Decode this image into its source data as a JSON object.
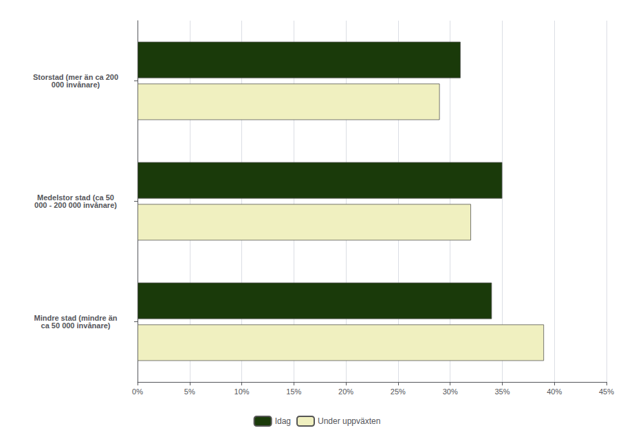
{
  "chart_data": {
    "type": "bar",
    "orientation": "horizontal",
    "categories": [
      "Storstad (mer än ca 200\n000 invånare)",
      "Medelstor stad (ca 50\n000 - 200 000 invånare)",
      "Mindre stad (mindre än\nca 50 000 invånare)"
    ],
    "series": [
      {
        "name": "Idag",
        "color": "#1a3a0a",
        "values": [
          0.31,
          0.35,
          0.34
        ]
      },
      {
        "name": "Under uppväxten",
        "color": "#f0f0c0",
        "values": [
          0.29,
          0.32,
          0.39
        ]
      }
    ],
    "xlim": [
      0,
      0.45
    ],
    "xticks": [
      {
        "value": 0.0,
        "label": "0%"
      },
      {
        "value": 0.05,
        "label": "5%"
      },
      {
        "value": 0.1,
        "label": "10%"
      },
      {
        "value": 0.15,
        "label": "15%"
      },
      {
        "value": 0.2,
        "label": "20%"
      },
      {
        "value": 0.25,
        "label": "25%"
      },
      {
        "value": 0.3,
        "label": "30%"
      },
      {
        "value": 0.35,
        "label": "35%"
      },
      {
        "value": 0.4,
        "label": "40%"
      },
      {
        "value": 0.45,
        "label": "45%"
      }
    ],
    "grid": true,
    "legend": "bottom"
  }
}
